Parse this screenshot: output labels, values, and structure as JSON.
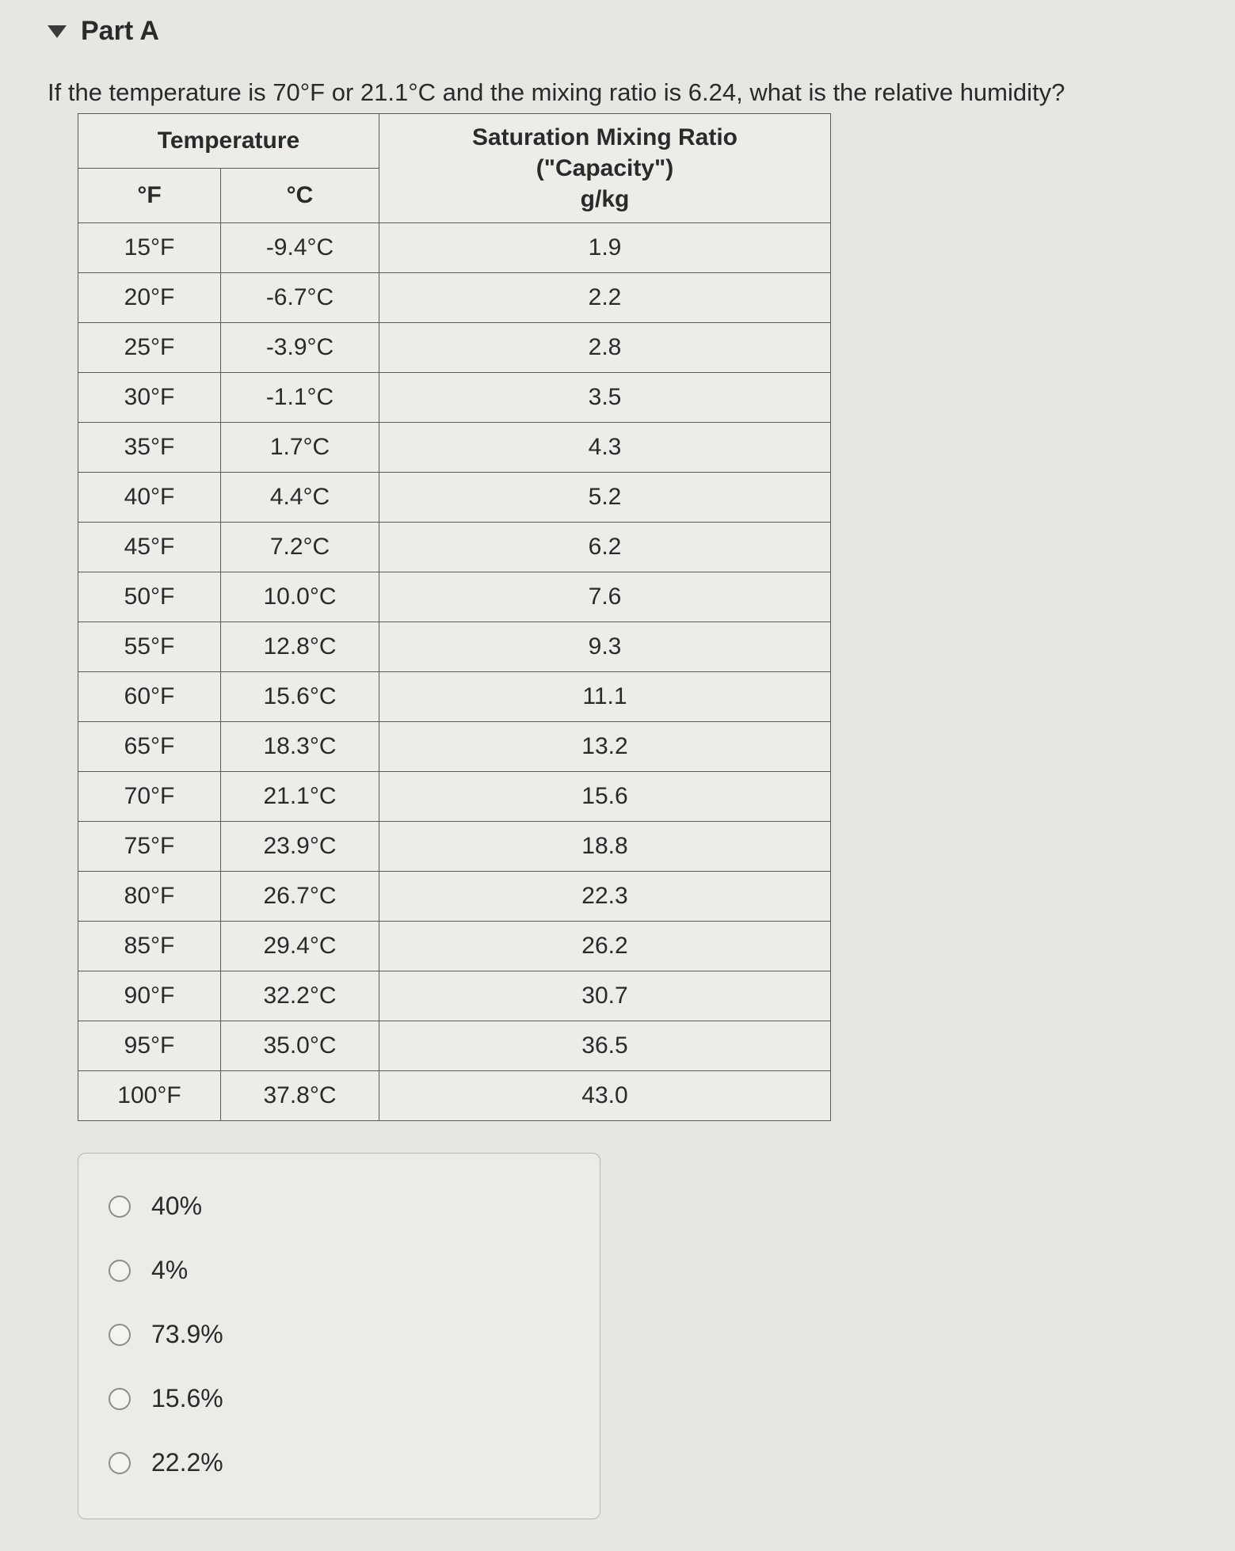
{
  "part": {
    "label": "Part A"
  },
  "question": "If the temperature is 70°F or 21.1°C and the mixing ratio is 6.24, what is the relative humidity?",
  "table": {
    "header": {
      "temp_group": "Temperature",
      "f": "°F",
      "c": "°C",
      "mix_l1": "Saturation Mixing Ratio",
      "mix_l2": "(\"Capacity\")",
      "mix_l3": "g/kg"
    },
    "rows": [
      {
        "f": "15°F",
        "c": "-9.4°C",
        "mix": "1.9"
      },
      {
        "f": "20°F",
        "c": "-6.7°C",
        "mix": "2.2"
      },
      {
        "f": "25°F",
        "c": "-3.9°C",
        "mix": "2.8"
      },
      {
        "f": "30°F",
        "c": "-1.1°C",
        "mix": "3.5"
      },
      {
        "f": "35°F",
        "c": "1.7°C",
        "mix": "4.3"
      },
      {
        "f": "40°F",
        "c": "4.4°C",
        "mix": "5.2"
      },
      {
        "f": "45°F",
        "c": "7.2°C",
        "mix": "6.2"
      },
      {
        "f": "50°F",
        "c": "10.0°C",
        "mix": "7.6"
      },
      {
        "f": "55°F",
        "c": "12.8°C",
        "mix": "9.3"
      },
      {
        "f": "60°F",
        "c": "15.6°C",
        "mix": "11.1"
      },
      {
        "f": "65°F",
        "c": "18.3°C",
        "mix": "13.2"
      },
      {
        "f": "70°F",
        "c": "21.1°C",
        "mix": "15.6"
      },
      {
        "f": "75°F",
        "c": "23.9°C",
        "mix": "18.8"
      },
      {
        "f": "80°F",
        "c": "26.7°C",
        "mix": "22.3"
      },
      {
        "f": "85°F",
        "c": "29.4°C",
        "mix": "26.2"
      },
      {
        "f": "90°F",
        "c": "32.2°C",
        "mix": "30.7"
      },
      {
        "f": "95°F",
        "c": "35.0°C",
        "mix": "36.5"
      },
      {
        "f": "100°F",
        "c": "37.8°C",
        "mix": "43.0"
      }
    ]
  },
  "answers": [
    {
      "label": "40%"
    },
    {
      "label": "4%"
    },
    {
      "label": "73.9%"
    },
    {
      "label": "15.6%"
    },
    {
      "label": "22.2%"
    }
  ],
  "colors": {
    "background": "#e8e6e2",
    "text": "#2a2a2a",
    "border": "#5a5a5a",
    "panel_border": "#b8b6b2",
    "radio_border": "#8f8d89"
  }
}
